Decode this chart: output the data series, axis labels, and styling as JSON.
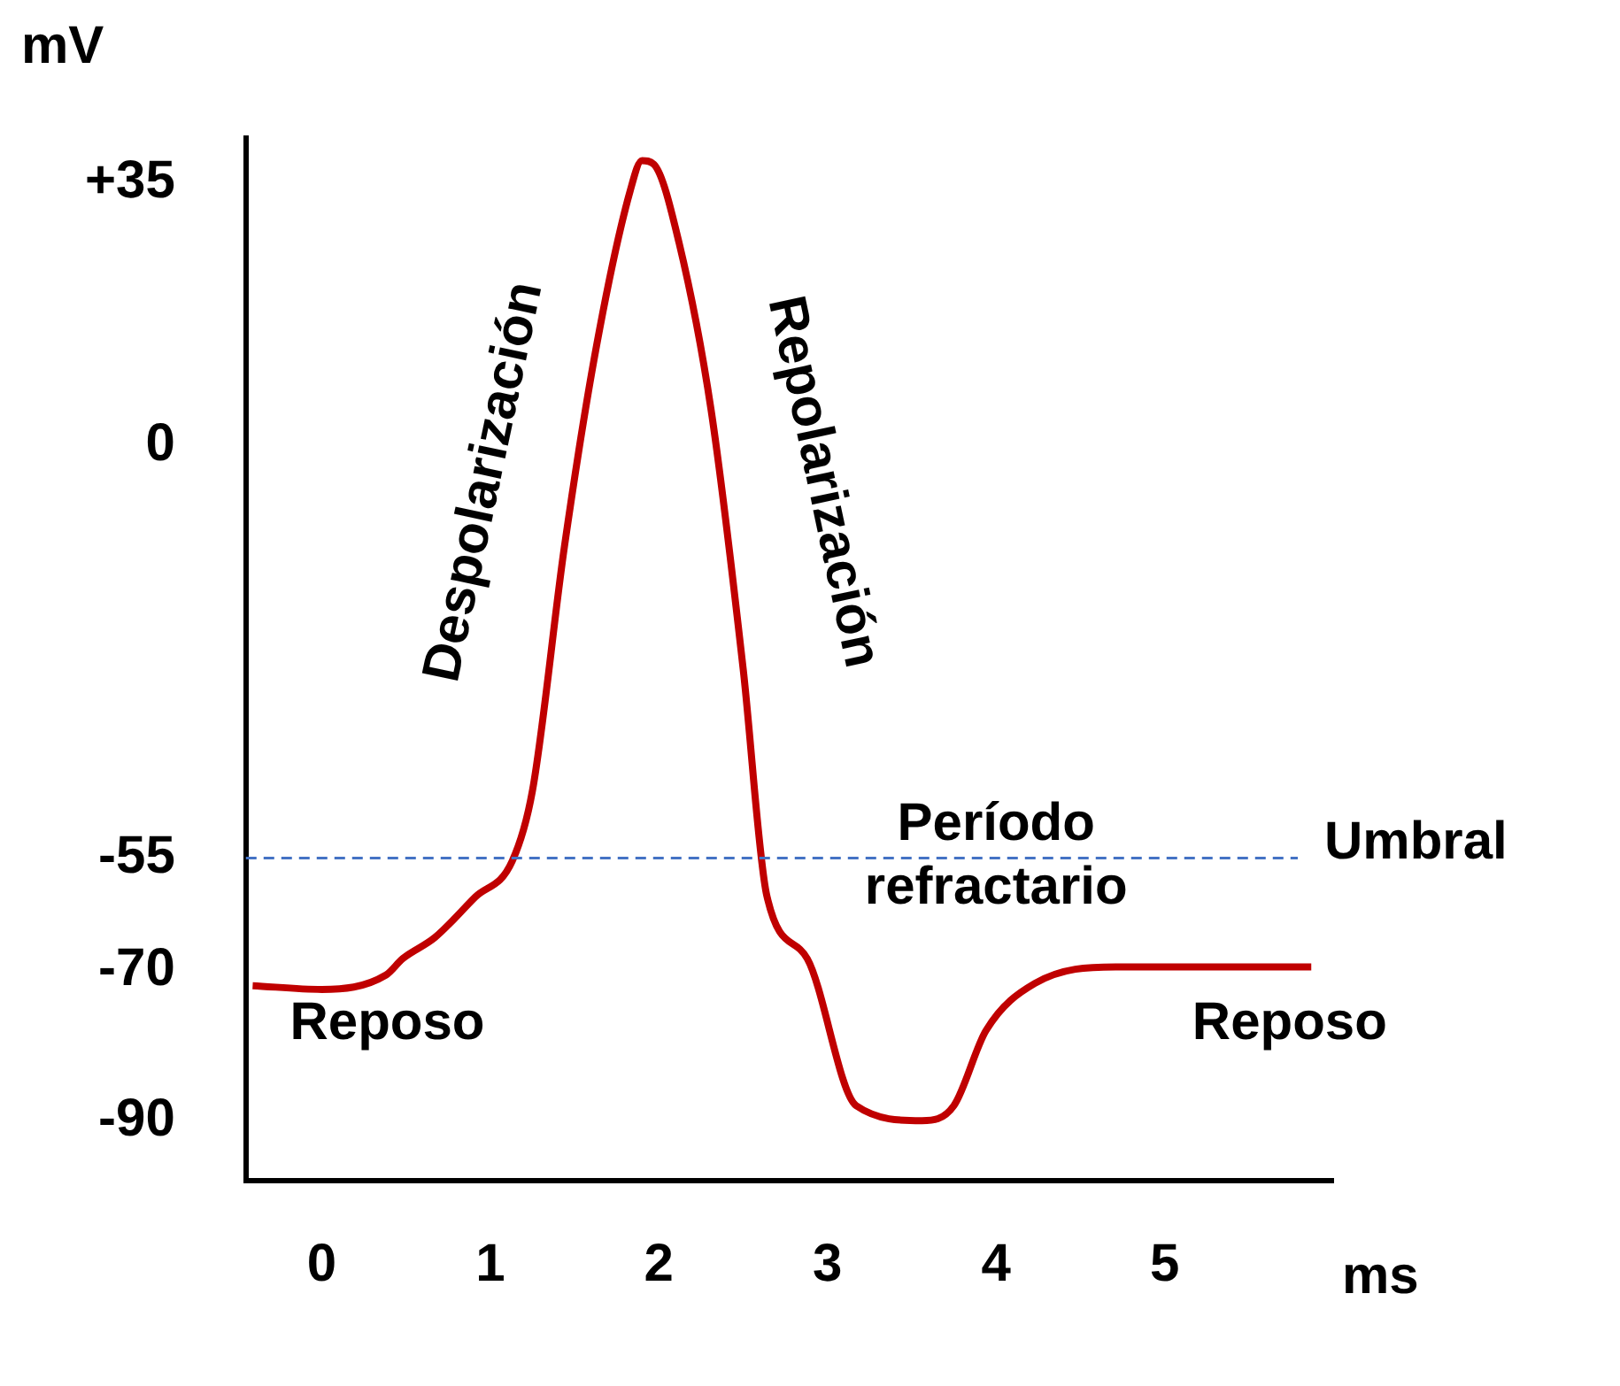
{
  "chart_data": {
    "type": "line",
    "xlabel": "ms",
    "ylabel": "mV",
    "x": [
      -0.41,
      0,
      0.38,
      0.48,
      0.67,
      0.91,
      1.13,
      1.25,
      1.44,
      1.63,
      1.83,
      1.9,
      1.97,
      2.12,
      2.31,
      2.5,
      2.64,
      2.88,
      3.17,
      3.56,
      3.75,
      3.94,
      4.23,
      4.71,
      5.87
    ],
    "series": [
      {
        "color": "#c00000",
        "values": [
          -72,
          -72.5,
          -70.6,
          -68.4,
          -65.6,
          -60.2,
          -55.4,
          -46,
          -13.4,
          13.3,
          34,
          38,
          37.5,
          27,
          4.7,
          -29.8,
          -60,
          -68.4,
          -88,
          -90,
          -88,
          -78,
          -71.7,
          -69.5,
          -69.5
        ]
      }
    ],
    "xlim": [
      -0.45,
      6
    ],
    "xticks": [
      0,
      1,
      2,
      3,
      4,
      5
    ],
    "ylim": [
      -98,
      41
    ],
    "yticks": [
      {
        "value": 35,
        "label": "+35"
      },
      0,
      -55,
      -70,
      -90
    ],
    "ref_lines": [
      {
        "axis": "y",
        "value": -55,
        "label": "Umbral",
        "color": "#4472c4",
        "line_style": "dashed"
      }
    ],
    "annotations": [
      "Despolarización",
      "Repolarización",
      "Período refractario",
      "Reposo",
      "Reposo"
    ],
    "grid": false,
    "legend": false,
    "marker": "none",
    "line_style": "solid"
  }
}
